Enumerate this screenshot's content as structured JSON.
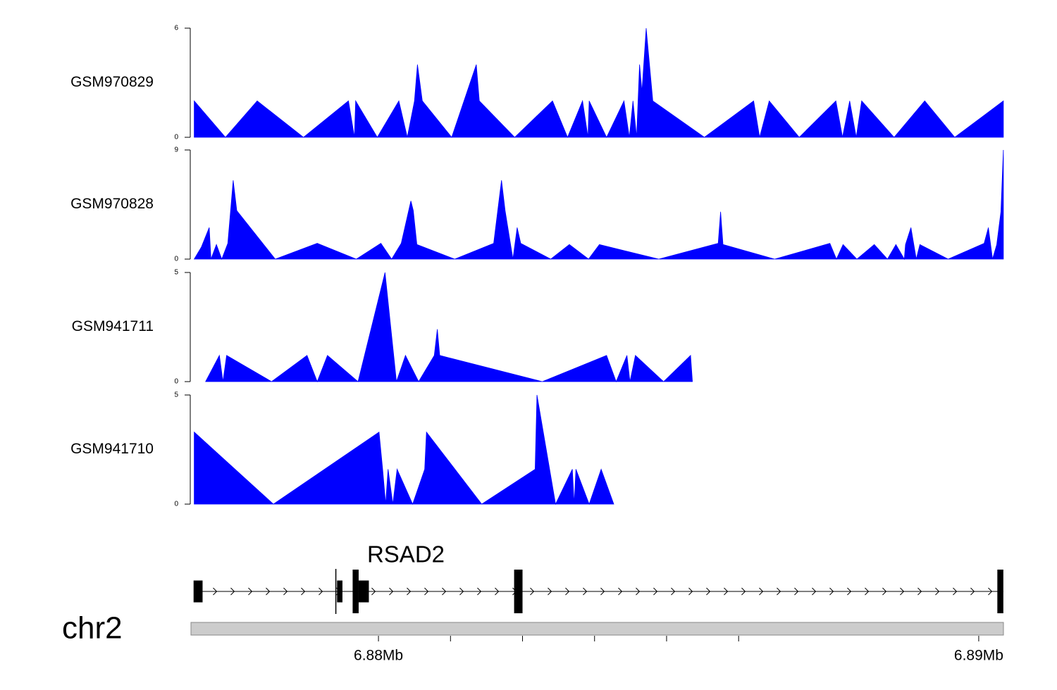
{
  "chart_data": {
    "type": "area",
    "title": "",
    "fill_color": "#0000ff",
    "gene_color": "#000000",
    "axis_bar_color": "#cccccc",
    "x_range": [
      6.8769,
      6.8904
    ],
    "x_unit": "Mb",
    "tracks": [
      {
        "name": "GSM970829",
        "ymax": 6,
        "ymax_label": "6",
        "ymin_label": "0",
        "points": [
          [
            6.87693,
            2
          ],
          [
            6.87745,
            0
          ],
          [
            6.87798,
            2
          ],
          [
            6.87875,
            0
          ],
          [
            6.8795,
            2
          ],
          [
            6.8796,
            0
          ],
          [
            6.87962,
            2
          ],
          [
            6.87998,
            0
          ],
          [
            6.88034,
            2
          ],
          [
            6.88048,
            0
          ],
          [
            6.8806,
            2
          ],
          [
            6.88065,
            4
          ],
          [
            6.88073,
            2
          ],
          [
            6.88122,
            0
          ],
          [
            6.88163,
            4
          ],
          [
            6.88168,
            2
          ],
          [
            6.88227,
            0
          ],
          [
            6.8829,
            2
          ],
          [
            6.88315,
            0
          ],
          [
            6.8834,
            2
          ],
          [
            6.88349,
            0
          ],
          [
            6.88351,
            2
          ],
          [
            6.8838,
            0
          ],
          [
            6.88409,
            2
          ],
          [
            6.88418,
            0
          ],
          [
            6.88424,
            2
          ],
          [
            6.8843,
            0
          ],
          [
            6.88435,
            4
          ],
          [
            6.88439,
            2.5
          ],
          [
            6.88446,
            6
          ],
          [
            6.88457,
            2
          ],
          [
            6.88543,
            0
          ],
          [
            6.88625,
            2
          ],
          [
            6.88635,
            0
          ],
          [
            6.88651,
            2
          ],
          [
            6.88701,
            0
          ],
          [
            6.88762,
            2
          ],
          [
            6.88773,
            0
          ],
          [
            6.88785,
            2
          ],
          [
            6.88796,
            0
          ],
          [
            6.88805,
            2
          ],
          [
            6.88859,
            0
          ],
          [
            6.8891,
            2
          ],
          [
            6.8896,
            0
          ],
          [
            6.89041,
            2
          ]
        ]
      },
      {
        "name": "GSM970828",
        "ymax": 9,
        "ymax_label": "9",
        "ymin_label": "0",
        "points": [
          [
            6.87693,
            0
          ],
          [
            6.87705,
            1
          ],
          [
            6.87718,
            2.6
          ],
          [
            6.87721,
            0
          ],
          [
            6.8773,
            1.2
          ],
          [
            6.87739,
            0
          ],
          [
            6.87749,
            1.3
          ],
          [
            6.87758,
            6.5
          ],
          [
            6.87764,
            4
          ],
          [
            6.87828,
            0
          ],
          [
            6.87898,
            1.3
          ],
          [
            6.87963,
            0
          ],
          [
            6.88004,
            1.3
          ],
          [
            6.88022,
            0
          ],
          [
            6.88038,
            1.3
          ],
          [
            6.88054,
            4.8
          ],
          [
            6.88058,
            4
          ],
          [
            6.88064,
            1.2
          ],
          [
            6.88127,
            0
          ],
          [
            6.88192,
            1.3
          ],
          [
            6.88205,
            6.5
          ],
          [
            6.88211,
            4
          ],
          [
            6.88224,
            0
          ],
          [
            6.88231,
            2.6
          ],
          [
            6.88237,
            1.3
          ],
          [
            6.88287,
            0
          ],
          [
            6.88318,
            1.2
          ],
          [
            6.8835,
            0
          ],
          [
            6.88368,
            1.2
          ],
          [
            6.88467,
            0
          ],
          [
            6.88566,
            1.3
          ],
          [
            6.8857,
            3.9
          ],
          [
            6.88574,
            1.2
          ],
          [
            6.8866,
            0
          ],
          [
            6.88752,
            1.3
          ],
          [
            6.88763,
            0
          ],
          [
            6.88774,
            1.2
          ],
          [
            6.88797,
            0
          ],
          [
            6.88826,
            1.2
          ],
          [
            6.88848,
            0
          ],
          [
            6.88862,
            1.2
          ],
          [
            6.88876,
            0
          ],
          [
            6.88878,
            1.2
          ],
          [
            6.88887,
            2.6
          ],
          [
            6.88896,
            0
          ],
          [
            6.88902,
            1.2
          ],
          [
            6.88949,
            0
          ],
          [
            6.89009,
            1.3
          ],
          [
            6.89016,
            2.6
          ],
          [
            6.89023,
            0
          ],
          [
            6.8903,
            1.2
          ],
          [
            6.89037,
            3.9
          ],
          [
            6.89041,
            9
          ]
        ]
      },
      {
        "name": "GSM941711",
        "ymax": 5,
        "ymax_label": "5",
        "ymin_label": "0",
        "points": [
          [
            6.87712,
            0
          ],
          [
            6.87735,
            1.2
          ],
          [
            6.87741,
            0
          ],
          [
            6.87747,
            1.2
          ],
          [
            6.87822,
            0
          ],
          [
            6.87881,
            1.2
          ],
          [
            6.87898,
            0
          ],
          [
            6.87915,
            1.2
          ],
          [
            6.87966,
            0
          ],
          [
            6.88011,
            5
          ],
          [
            6.8803,
            0
          ],
          [
            6.88045,
            1.2
          ],
          [
            6.88067,
            0
          ],
          [
            6.88093,
            1.2
          ],
          [
            6.88098,
            2.4
          ],
          [
            6.88102,
            1.2
          ],
          [
            6.88273,
            0
          ],
          [
            6.8838,
            1.2
          ],
          [
            6.88396,
            0
          ],
          [
            6.88414,
            1.2
          ],
          [
            6.88419,
            0
          ],
          [
            6.88428,
            1.2
          ],
          [
            6.88475,
            0
          ],
          [
            6.8852,
            1.2
          ],
          [
            6.88523,
            0
          ]
        ]
      },
      {
        "name": "GSM941710",
        "ymax": 5,
        "ymax_label": "5",
        "ymin_label": "0",
        "points": [
          [
            6.87693,
            3.3
          ],
          [
            6.87825,
            0
          ],
          [
            6.88001,
            3.3
          ],
          [
            6.88007,
            1.6
          ],
          [
            6.88012,
            0
          ],
          [
            6.88016,
            1.6
          ],
          [
            6.88024,
            0
          ],
          [
            6.88031,
            1.6
          ],
          [
            6.88057,
            0
          ],
          [
            6.88077,
            1.6
          ],
          [
            6.8808,
            3.3
          ],
          [
            6.88172,
            0
          ],
          [
            6.88261,
            1.6
          ],
          [
            6.88264,
            5
          ],
          [
            6.88295,
            0
          ],
          [
            6.88323,
            1.6
          ],
          [
            6.88326,
            0
          ],
          [
            6.88329,
            1.6
          ],
          [
            6.88351,
            0
          ],
          [
            6.88371,
            1.6
          ],
          [
            6.88392,
            0
          ]
        ]
      }
    ],
    "gene": {
      "name": "RSAD2",
      "strand": "+",
      "exons": [
        {
          "start": 6.87692,
          "end": 6.87707,
          "type": "utr"
        },
        {
          "start": 6.87931,
          "end": 6.8794,
          "type": "utr"
        },
        {
          "start": 6.87957,
          "end": 6.87967,
          "type": "cds"
        },
        {
          "start": 6.87967,
          "end": 6.87984,
          "type": "utr"
        },
        {
          "start": 6.88226,
          "end": 6.8824,
          "type": "cds"
        },
        {
          "start": 6.89031,
          "end": 6.89041,
          "type": "cds"
        }
      ],
      "tss_mark": 6.87929,
      "intron_start": 6.87707,
      "intron_end": 6.89041
    },
    "chromosome": "chr2",
    "x_ticks": [
      {
        "value": 6.88,
        "label": "6.88Mb"
      },
      {
        "value": 6.882,
        "label": ""
      },
      {
        "value": 6.8832,
        "label": ""
      },
      {
        "value": 6.8844,
        "label": ""
      },
      {
        "value": 6.8856,
        "label": ""
      },
      {
        "value": 6.89,
        "label": "6.89Mb"
      }
    ],
    "x_axis_ticks": [
      6.88,
      6.8812,
      6.8824,
      6.8836,
      6.8848,
      6.886,
      6.89
    ]
  }
}
